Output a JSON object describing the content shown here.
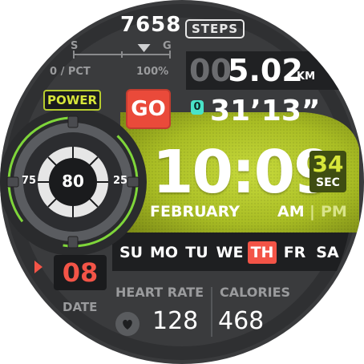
{
  "colors": {
    "accent_green": "#b7cc2e",
    "neon_green": "#7fd63a",
    "go_red": "#ea4a3a",
    "date_red": "#f35447",
    "cyan": "#49e3c8",
    "bezel_dark": "#1c1d1f",
    "panel_dark": "#242527"
  },
  "steps": {
    "value": "7658",
    "label": "STEPS"
  },
  "fuel_gauge": {
    "left_mark": "S",
    "right_mark": "G",
    "min_label": "0 / PCT",
    "max_label": "100%",
    "level": 0.73
  },
  "power": {
    "label": "POWER",
    "value": "80",
    "left_tick": "75",
    "right_tick": "25",
    "level": 0.8
  },
  "distance": {
    "leading": "00",
    "value": "5.02",
    "unit": "KM"
  },
  "go_button": {
    "label": "GO"
  },
  "timer": {
    "index": "0",
    "value": "31’13”"
  },
  "time": {
    "hours": "10",
    "minutes": "09",
    "separator": ":",
    "seconds": "34",
    "seconds_label": "SEC",
    "am": "AM",
    "pm": "PM",
    "divider": "|"
  },
  "month": "FEBRUARY",
  "weekdays": [
    {
      "label": "SU",
      "active": false
    },
    {
      "label": "MO",
      "active": false
    },
    {
      "label": "TU",
      "active": false
    },
    {
      "label": "WE",
      "active": false
    },
    {
      "label": "TH",
      "active": true
    },
    {
      "label": "FR",
      "active": false
    },
    {
      "label": "SA",
      "active": false
    }
  ],
  "date": {
    "value": "08",
    "label": "DATE"
  },
  "heart_rate": {
    "label": "HEART RATE",
    "value": "128",
    "icon": "heart-icon"
  },
  "calories": {
    "label": "CALORIES",
    "value": "468"
  }
}
